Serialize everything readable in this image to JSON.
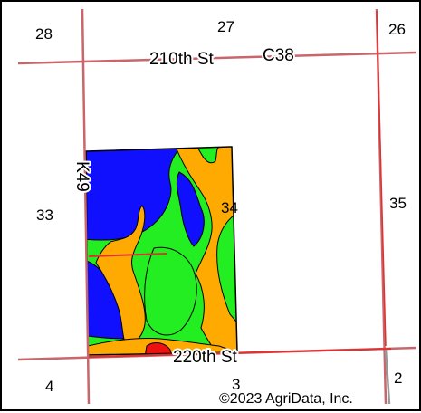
{
  "map": {
    "section_numbers": {
      "nw": "28",
      "n": "27",
      "ne": "26",
      "w": "33",
      "center": "34",
      "e": "35",
      "sw": "4",
      "s": "3",
      "se": "2"
    },
    "roads": {
      "north": "210th St",
      "north_county": "C38",
      "south": "220th St",
      "west": "K49"
    },
    "copyright": "©2023 AgriData, Inc.",
    "colors": {
      "section_line": "#c8666b",
      "boundary_line": "#e03030",
      "soil_blue": "#1010ff",
      "soil_green": "#22ee22",
      "soil_orange": "#ffaa00",
      "soil_red": "#ee1111",
      "soil_purple": "#9933cc"
    }
  }
}
